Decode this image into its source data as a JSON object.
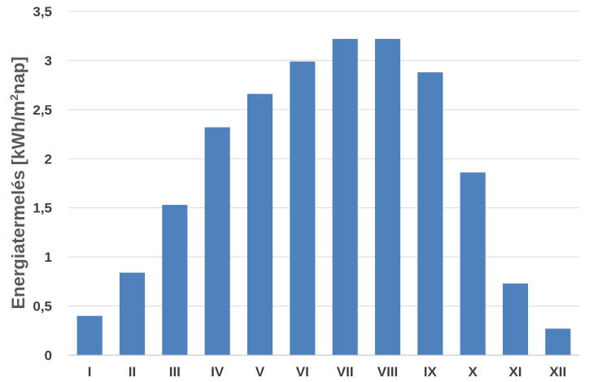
{
  "chart_data": {
    "type": "bar",
    "title": "",
    "xlabel": "",
    "ylabel_parts": [
      "Energiatermelés [kWh/m",
      "2",
      "nap]"
    ],
    "categories": [
      "I",
      "II",
      "III",
      "IV",
      "V",
      "VI",
      "VII",
      "VIII",
      "IX",
      "X",
      "XI",
      "XII"
    ],
    "values": [
      0.4,
      0.84,
      1.53,
      2.32,
      2.66,
      2.99,
      3.22,
      3.22,
      2.88,
      1.86,
      0.73,
      0.27
    ],
    "ylim": [
      0,
      3.5
    ],
    "yticks": [
      0,
      0.5,
      1,
      1.5,
      2,
      2.5,
      3,
      3.5
    ],
    "ytick_labels": [
      "0",
      "0,5",
      "1",
      "1,5",
      "2",
      "2,5",
      "3",
      "3,5"
    ],
    "grid": true,
    "legend": "none",
    "bar_color": "#4f81bd"
  }
}
